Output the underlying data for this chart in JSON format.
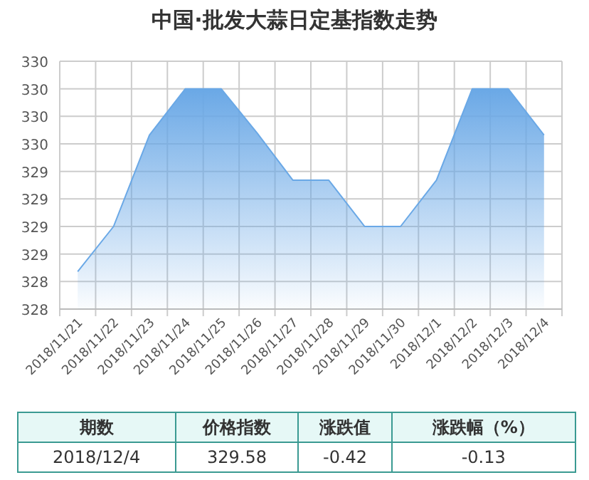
{
  "chart_data": {
    "type": "area",
    "title": "中国·批发大蒜日定基指数走势",
    "categories": [
      "2018/11/21",
      "2018/11/22",
      "2018/11/23",
      "2018/11/24",
      "2018/11/25",
      "2018/11/26",
      "2018/11/27",
      "2018/11/28",
      "2018/11/29",
      "2018/11/30",
      "2018/12/1",
      "2018/12/2",
      "2018/12/3",
      "2018/12/4"
    ],
    "values": [
      328.34,
      328.75,
      329.58,
      330.0,
      330.0,
      329.6,
      329.17,
      329.17,
      328.75,
      328.75,
      329.17,
      330.0,
      330.0,
      329.58
    ],
    "color": "#6aa8e6",
    "ylim": [
      328,
      330.25
    ],
    "yticks": [
      {
        "value": 328,
        "label": "328"
      },
      {
        "value": 328.25,
        "label": "328"
      },
      {
        "value": 328.5,
        "label": "329"
      },
      {
        "value": 328.75,
        "label": "329"
      },
      {
        "value": 329,
        "label": "329"
      },
      {
        "value": 329.25,
        "label": "329"
      },
      {
        "value": 329.5,
        "label": "330"
      },
      {
        "value": 329.75,
        "label": "330"
      },
      {
        "value": 330,
        "label": "330"
      },
      {
        "value": 330.25,
        "label": "330"
      }
    ],
    "grid": true,
    "annotations": [
      "期数",
      "价格指数",
      "涨跌值",
      "涨跌幅（%）",
      "2018/12/4",
      "329.58",
      "-0.42",
      "-0.13"
    ]
  }
}
